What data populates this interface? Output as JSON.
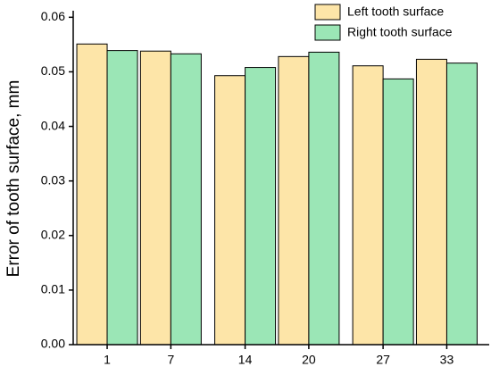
{
  "chart_data": {
    "type": "bar",
    "y_label": "Error of tooth surface, mm",
    "x": [
      1,
      7,
      14,
      20,
      27,
      33
    ],
    "xlim": [
      -2.2,
      37
    ],
    "xticks": [
      1,
      7,
      14,
      20,
      27,
      33
    ],
    "ylim": [
      0,
      0.0612
    ],
    "yticks": [
      {
        "value": 0,
        "label": "0.00"
      },
      0.01,
      0.02,
      0.03,
      0.04,
      0.05,
      0.06
    ],
    "legend": "upper right",
    "series": [
      {
        "name": "Left tooth surface",
        "color": "#fde5a8",
        "values": [
          0.0551,
          0.0538,
          0.0493,
          0.0528,
          0.0511,
          0.0523
        ]
      },
      {
        "name": "Right tooth surface",
        "color": "#9be6b6",
        "values": [
          0.0539,
          0.0533,
          0.0508,
          0.0536,
          0.0487,
          0.0516
        ]
      }
    ]
  }
}
